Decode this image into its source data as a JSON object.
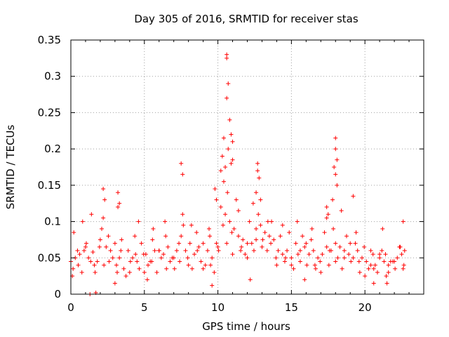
{
  "chart_data": {
    "type": "scatter",
    "title": "Day 305 of 2016, SRMTID for receiver stas",
    "xlabel": "GPS time / hours",
    "ylabel": "SRMTID / TECUs",
    "xlim": [
      0,
      24
    ],
    "ylim": [
      0,
      0.35
    ],
    "xticks": [
      0,
      5,
      10,
      15,
      20
    ],
    "xtick_labels": [
      "0",
      "5",
      "10",
      "15",
      "20"
    ],
    "yticks": [
      0,
      0.05,
      0.1,
      0.15,
      0.2,
      0.25,
      0.3,
      0.35
    ],
    "ytick_labels": [
      "0",
      "0.05",
      "0.1",
      "0.15",
      "0.2",
      "0.25",
      "0.3",
      "0.35"
    ],
    "grid": true,
    "marker": "+",
    "color": "#ff0000",
    "series": [
      {
        "name": "stas",
        "x": [
          0.0,
          0.3,
          0.6,
          0.9,
          1.2,
          1.5,
          1.8,
          2.1,
          2.4,
          2.7,
          3.0,
          3.3,
          3.6,
          3.9,
          4.2,
          4.5,
          4.8,
          5.1,
          5.4,
          5.7,
          6.0,
          6.3,
          6.6,
          6.9,
          7.2,
          7.5,
          7.8,
          8.1,
          8.4,
          8.7,
          9.0,
          9.3,
          9.6,
          9.9,
          10.2,
          10.5,
          10.8,
          11.1,
          11.4,
          11.7,
          12.0,
          12.3,
          12.6,
          12.9,
          13.2,
          13.5,
          13.8,
          14.1,
          14.4,
          14.7,
          15.0,
          15.3,
          15.6,
          15.9,
          16.2,
          16.5,
          16.8,
          17.1,
          17.4,
          17.7,
          18.0,
          18.3,
          18.6,
          18.9,
          19.2,
          19.5,
          19.8,
          20.1,
          20.4,
          20.7,
          21.0,
          21.3,
          21.6,
          21.9,
          22.2,
          22.5,
          22.7,
          0.15,
          0.45,
          0.75,
          1.05,
          1.35,
          1.65,
          1.95,
          2.25,
          2.55,
          2.85,
          3.15,
          3.45,
          3.75,
          4.05,
          4.35,
          4.65,
          4.95,
          5.25,
          5.55,
          5.85,
          6.15,
          6.45,
          6.75,
          7.05,
          7.35,
          7.65,
          7.95,
          8.25,
          8.55,
          8.85,
          9.15,
          9.45,
          9.75,
          10.05,
          10.35,
          10.65,
          10.95,
          11.25,
          11.55,
          11.85,
          12.15,
          12.45,
          12.75,
          13.05,
          13.35,
          13.65,
          13.95,
          14.25,
          14.55,
          14.85,
          15.15,
          15.45,
          15.75,
          16.05,
          16.35,
          16.65,
          16.95,
          17.25,
          17.55,
          17.85,
          18.15,
          18.45,
          18.75,
          19.05,
          19.35,
          19.65,
          19.95,
          20.25,
          20.55,
          20.85,
          21.15,
          21.45,
          21.75,
          22.05,
          22.35,
          22.65,
          0.1,
          0.5,
          1.0,
          1.6,
          2.0,
          2.6,
          3.1,
          3.4,
          4.0,
          4.4,
          5.0,
          5.5,
          6.0,
          6.5,
          7.0,
          7.4,
          8.0,
          8.6,
          9.0,
          9.5,
          10.0,
          10.6,
          11.0,
          11.6,
          12.0,
          12.6,
          13.0,
          13.6,
          14.0,
          14.6,
          15.0,
          15.6,
          16.0,
          16.6,
          17.0,
          17.6,
          18.0,
          18.6,
          19.0,
          19.6,
          20.0,
          20.6,
          21.0,
          21.6,
          22.0,
          22.6,
          0.2,
          0.8,
          1.4,
          2.2,
          3.2,
          4.6,
          5.6,
          6.4,
          7.6,
          8.2,
          9.4,
          10.4,
          11.4,
          12.4,
          13.4,
          14.4,
          15.4,
          16.4,
          17.4,
          18.4,
          19.4,
          20.4,
          21.4,
          22.4,
          10.6,
          10.6,
          10.6,
          10.7,
          10.7,
          10.8,
          10.9,
          10.9,
          11.0,
          11.0,
          10.3,
          10.4,
          10.2,
          10.5,
          12.7,
          12.8,
          12.6,
          12.9,
          12.7,
          18.0,
          18.0,
          18.1,
          18.0,
          17.9,
          18.1,
          17.8,
          2.2,
          2.3,
          3.2,
          3.3,
          7.5,
          7.6,
          9.8,
          9.9,
          17.4,
          17.5,
          19.2,
          21.2,
          22.6,
          1.3,
          1.7,
          3.0,
          5.2,
          9.6,
          12.2,
          15.9,
          20.6,
          21.5
        ],
        "y": [
          0.045,
          0.05,
          0.055,
          0.06,
          0.05,
          0.058,
          0.045,
          0.09,
          0.065,
          0.06,
          0.07,
          0.05,
          0.035,
          0.06,
          0.05,
          0.045,
          0.07,
          0.055,
          0.045,
          0.06,
          0.06,
          0.055,
          0.065,
          0.05,
          0.06,
          0.08,
          0.06,
          0.07,
          0.055,
          0.065,
          0.07,
          0.06,
          0.05,
          0.07,
          0.12,
          0.11,
          0.1,
          0.09,
          0.08,
          0.075,
          0.07,
          0.07,
          0.09,
          0.095,
          0.085,
          0.08,
          0.075,
          0.06,
          0.055,
          0.06,
          0.05,
          0.07,
          0.06,
          0.065,
          0.055,
          0.06,
          0.05,
          0.055,
          0.065,
          0.06,
          0.07,
          0.065,
          0.06,
          0.055,
          0.05,
          0.06,
          0.05,
          0.045,
          0.04,
          0.04,
          0.05,
          0.045,
          0.04,
          0.045,
          0.05,
          0.055,
          0.06,
          0.035,
          0.06,
          0.03,
          0.07,
          0.045,
          0.03,
          0.065,
          0.04,
          0.08,
          0.05,
          0.03,
          0.075,
          0.025,
          0.045,
          0.08,
          0.035,
          0.055,
          0.04,
          0.075,
          0.03,
          0.05,
          0.08,
          0.045,
          0.035,
          0.07,
          0.095,
          0.05,
          0.035,
          0.085,
          0.045,
          0.04,
          0.08,
          0.03,
          0.06,
          0.095,
          0.14,
          0.085,
          0.13,
          0.06,
          0.055,
          0.1,
          0.06,
          0.11,
          0.075,
          0.06,
          0.1,
          0.05,
          0.08,
          0.045,
          0.085,
          0.035,
          0.055,
          0.08,
          0.04,
          0.075,
          0.035,
          0.045,
          0.085,
          0.04,
          0.09,
          0.05,
          0.035,
          0.08,
          0.045,
          0.07,
          0.03,
          0.065,
          0.035,
          0.055,
          0.03,
          0.06,
          0.025,
          0.045,
          0.035,
          0.065,
          0.04,
          0.025,
          0.04,
          0.065,
          0.04,
          0.075,
          0.045,
          0.04,
          0.06,
          0.03,
          0.055,
          0.03,
          0.045,
          0.06,
          0.035,
          0.05,
          0.045,
          0.04,
          0.06,
          0.035,
          0.04,
          0.065,
          0.07,
          0.055,
          0.065,
          0.05,
          0.075,
          0.065,
          0.07,
          0.04,
          0.05,
          0.04,
          0.045,
          0.07,
          0.04,
          0.03,
          0.06,
          0.045,
          0.05,
          0.07,
          0.045,
          0.025,
          0.035,
          0.055,
          0.03,
          0.045,
          0.035,
          0.085,
          0.1,
          0.11,
          0.105,
          0.12,
          0.1,
          0.09,
          0.1,
          0.11,
          0.095,
          0.09,
          0.155,
          0.115,
          0.125,
          0.1,
          0.095,
          0.1,
          0.09,
          0.105,
          0.115,
          0.085,
          0.06,
          0.055,
          0.065,
          0.33,
          0.325,
          0.27,
          0.29,
          0.2,
          0.24,
          0.22,
          0.18,
          0.21,
          0.185,
          0.19,
          0.215,
          0.17,
          0.175,
          0.18,
          0.16,
          0.14,
          0.13,
          0.17,
          0.215,
          0.2,
          0.185,
          0.165,
          0.175,
          0.15,
          0.13,
          0.145,
          0.13,
          0.14,
          0.125,
          0.18,
          0.165,
          0.145,
          0.13,
          0.12,
          0.11,
          0.135,
          0.09,
          0.1,
          0.0,
          0.002,
          0.015,
          0.02,
          0.012,
          0.02,
          0.02,
          0.015,
          0.015
        ]
      }
    ]
  }
}
